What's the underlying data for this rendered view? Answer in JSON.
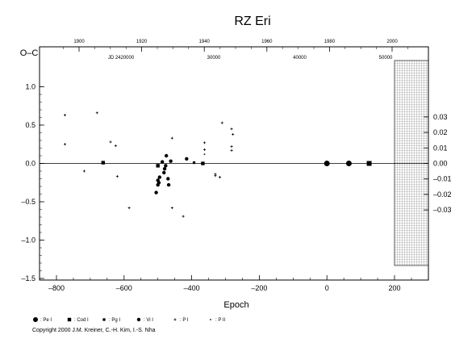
{
  "chart_data": {
    "type": "scatter",
    "title": "RZ  Eri",
    "ylabel_left": "O–C",
    "xlabel": "Epoch",
    "x_ticks": [
      "–800",
      "–600",
      "–400",
      "–200",
      "0",
      "200"
    ],
    "x_tick_values": [
      -800,
      -600,
      -400,
      -200,
      0,
      200
    ],
    "y_left_ticks": [
      "–1.5",
      "–1.0",
      "–0.5",
      "0.0",
      "0.5",
      "1.0"
    ],
    "y_left_tick_values": [
      -1.5,
      -1.0,
      -0.5,
      0.0,
      0.5,
      1.0
    ],
    "y_right_ticks": [
      "–0.03",
      "–0.02",
      "–0.01",
      "0.00",
      "0.01",
      "0.02",
      "0.03"
    ],
    "y_right_tick_values": [
      -0.03,
      -0.02,
      -0.01,
      0.0,
      0.01,
      0.02,
      0.03
    ],
    "top_year_ticks": [
      "1900",
      "1920",
      "1940",
      "1960",
      "1980",
      "2000"
    ],
    "top_year_tick_values": [
      1900,
      1920,
      1940,
      1960,
      1980,
      2000
    ],
    "jd_label": "JD 2420000",
    "jd_ticks": [
      "30000",
      "40000",
      "50000"
    ],
    "jd_tick_values": [
      30000,
      40000,
      50000
    ],
    "xlim": [
      -800,
      200
    ],
    "ylim": [
      -1.5,
      1.1
    ],
    "y_right_lim": [
      -0.0378,
      0.0331
    ],
    "shaded_region": [
      200,
      300
    ],
    "series": [
      {
        "name": "Pe I",
        "marker": "circle-small",
        "points": [
          [
            -505,
            -0.38
          ],
          [
            -500,
            -0.28
          ],
          [
            -500,
            -0.22
          ],
          [
            -497,
            -0.25
          ],
          [
            -495,
            -0.18
          ],
          [
            -487,
            0.02
          ],
          [
            -482,
            -0.12
          ],
          [
            -480,
            -0.07
          ],
          [
            -477,
            -0.03
          ],
          [
            -475,
            0.1
          ],
          [
            -470,
            -0.2
          ],
          [
            -468,
            -0.28
          ],
          [
            -462,
            0.03
          ],
          [
            -415,
            0.06
          ]
        ]
      },
      {
        "name": "Cod I",
        "marker": "square",
        "points": [
          [
            -662,
            0.01
          ],
          [
            -500,
            -0.03
          ],
          [
            -367,
            0.0
          ]
        ]
      },
      {
        "name": "Pg I",
        "marker": "square-small",
        "points": [
          [
            -393,
            0.01
          ]
        ]
      },
      {
        "name": "Vi I",
        "marker": "circle-large",
        "points": [
          [
            0,
            0.0
          ],
          [
            65,
            0.0
          ]
        ]
      },
      {
        "name": "Vi I (square)",
        "marker": "square-large",
        "points": [
          [
            125,
            0.0
          ]
        ]
      },
      {
        "name": "P I",
        "marker": "plus",
        "points": [
          [
            -775,
            0.63
          ],
          [
            -775,
            0.25
          ],
          [
            -718,
            -0.1
          ],
          [
            -680,
            0.66
          ],
          [
            -640,
            0.28
          ],
          [
            -625,
            0.23
          ],
          [
            -620,
            -0.17
          ],
          [
            -585,
            -0.58
          ],
          [
            -458,
            0.33
          ],
          [
            -458,
            -0.58
          ],
          [
            -425,
            -0.69
          ],
          [
            -362,
            0.27
          ],
          [
            -362,
            0.18
          ],
          [
            -330,
            -0.16
          ],
          [
            -330,
            -0.14
          ],
          [
            -317,
            -0.18
          ],
          [
            -310,
            0.53
          ],
          [
            -282,
            0.45
          ],
          [
            -278,
            0.38
          ],
          [
            -282,
            0.22
          ],
          [
            -282,
            0.17
          ]
        ]
      },
      {
        "name": "P II",
        "marker": "dot",
        "points": [
          [
            -362,
            0.12
          ]
        ]
      }
    ]
  },
  "legend": [
    {
      "marker": "circle",
      "label": ": Pe I"
    },
    {
      "marker": "square",
      "label": ": Cod I"
    },
    {
      "marker": "square-small",
      "label": ": Pg I"
    },
    {
      "marker": "circle-small",
      "label": ": Vi I"
    },
    {
      "marker": "plus",
      "label": ": P I"
    },
    {
      "marker": "dot",
      "label": ": P II"
    }
  ],
  "copyright": "Copyright 2000 J.M. Kreiner, C.-H. Kim, I.-S. Nha"
}
